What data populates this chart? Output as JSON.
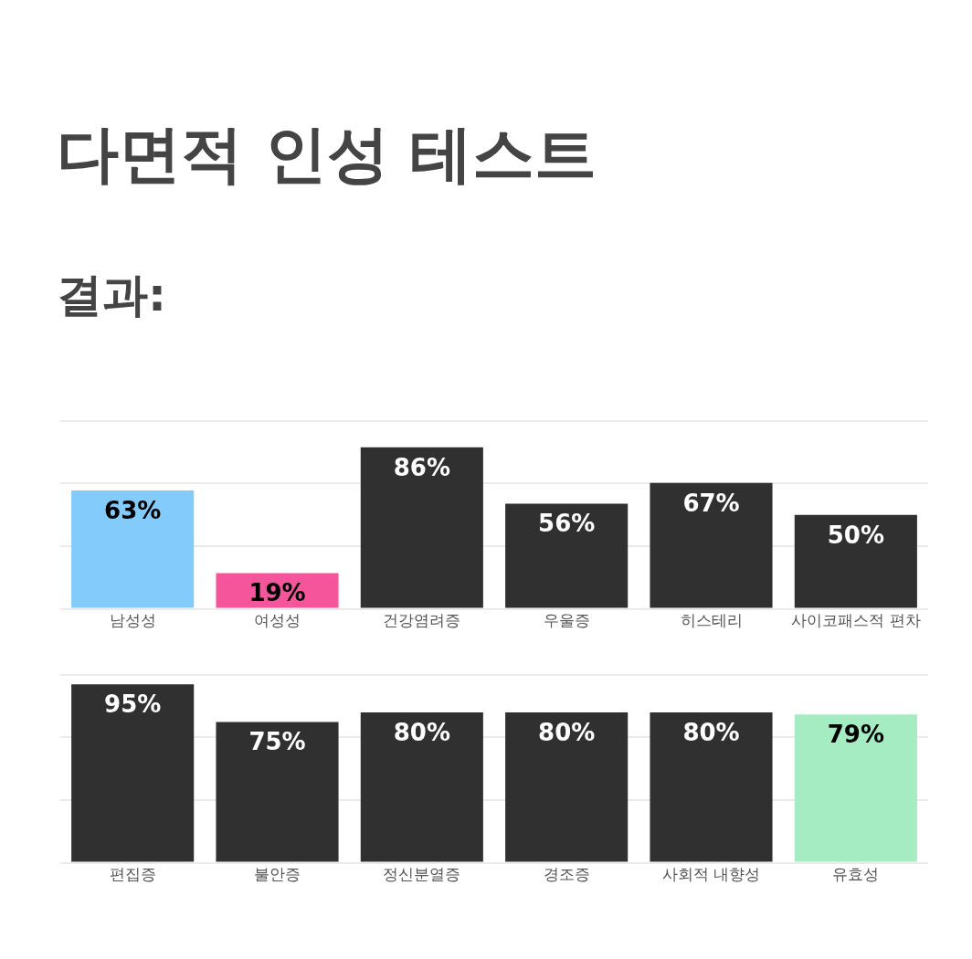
{
  "chart_data": [
    {
      "type": "bar",
      "title": "다면적 인성 테스트",
      "subtitle": "결과:",
      "categories": [
        "남성성",
        "여성성",
        "건강염려증",
        "우울증",
        "히스테리",
        "사이코패스적 편차"
      ],
      "values": [
        63,
        19,
        86,
        56,
        67,
        50
      ],
      "colors": [
        "#83cbfa",
        "#f5559a",
        "#303030",
        "#303030",
        "#303030",
        "#303030"
      ],
      "value_labels": [
        "63%",
        "19%",
        "86%",
        "56%",
        "67%",
        "50%"
      ],
      "ylim": [
        0,
        100
      ],
      "yticks": [
        {
          "value": 0,
          "label": null
        },
        {
          "value": 33.3,
          "label": null
        },
        {
          "value": 66.7,
          "label": null
        },
        {
          "value": 100,
          "label": null
        }
      ],
      "grid": "y",
      "tick_labels": "x"
    },
    {
      "type": "bar",
      "categories": [
        "편집증",
        "불안증",
        "정신분열증",
        "경조증",
        "사회적 내향성",
        "유효성"
      ],
      "values": [
        95,
        75,
        80,
        80,
        80,
        79
      ],
      "colors": [
        "#303030",
        "#303030",
        "#303030",
        "#303030",
        "#303030",
        "#a5ecc3"
      ],
      "value_labels": [
        "95%",
        "75%",
        "80%",
        "80%",
        "80%",
        "79%"
      ],
      "ylim": [
        0,
        100
      ],
      "yticks": [
        {
          "value": 0,
          "label": null
        },
        {
          "value": 33.3,
          "label": null
        },
        {
          "value": 66.7,
          "label": null
        },
        {
          "value": 100,
          "label": null
        }
      ],
      "grid": "y",
      "tick_labels": "x"
    }
  ]
}
